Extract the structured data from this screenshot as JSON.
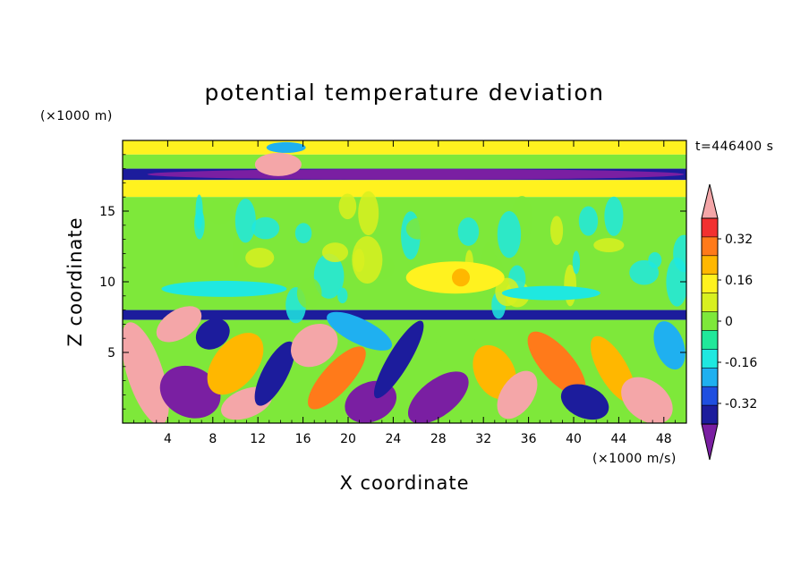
{
  "chart_data": {
    "type": "heatmap",
    "title": "potential temperature deviation",
    "xlabel": "X coordinate",
    "ylabel": "Z coordinate",
    "x_units": "(×1000 m/s)",
    "y_units": "(×1000 m)",
    "time_label": "t=446400 s",
    "xlim": [
      0,
      50
    ],
    "ylim": [
      0,
      20
    ],
    "x_ticks": [
      4,
      8,
      12,
      16,
      20,
      24,
      28,
      32,
      36,
      40,
      44,
      48
    ],
    "y_ticks": [
      5,
      10,
      15
    ],
    "colorbar": {
      "levels": [
        -0.4,
        -0.32,
        -0.24,
        -0.16,
        -0.08,
        0,
        0.08,
        0.16,
        0.24,
        0.32,
        0.4
      ],
      "labels": [
        "0.32",
        "0.16",
        "0",
        "-0.16",
        "-0.32"
      ],
      "label_values": [
        0.32,
        0.16,
        0,
        -0.16,
        -0.32
      ],
      "under_color": "#7a1fa2",
      "over_color": "#f4a6a8",
      "colors": [
        "#1c1c9c",
        "#1f4fe0",
        "#1fb0f0",
        "#1fe8e0",
        "#20e89a",
        "#7ee83a",
        "#d8f020",
        "#fff21f",
        "#ffb700",
        "#ff7a1a",
        "#f23030"
      ]
    },
    "bands": [
      {
        "z": [
          19.0,
          20.0
        ],
        "value": 0.18
      },
      {
        "z": [
          18.0,
          19.0
        ],
        "value": 0.05
      },
      {
        "z": [
          17.2,
          18.0
        ],
        "value": -0.36
      },
      {
        "z": [
          16.0,
          17.2
        ],
        "value": 0.18
      },
      {
        "z": [
          8.0,
          16.0
        ],
        "value": 0.06
      },
      {
        "z": [
          7.3,
          8.0
        ],
        "value": -0.38
      },
      {
        "z": [
          0,
          7.3
        ],
        "value": 0.0
      }
    ],
    "features": [
      {
        "x": 6.5,
        "z": 3.2,
        "value": -0.45
      },
      {
        "x": 5.5,
        "z": 7.0,
        "value": 0.45
      },
      {
        "x": 13.8,
        "z": 18.2,
        "value": 0.45
      },
      {
        "x": 17.5,
        "z": 4.0,
        "value": 0.45
      },
      {
        "x": 28.0,
        "z": 1.6,
        "value": -0.45
      },
      {
        "x": 34.5,
        "z": 2.2,
        "value": 0.45
      },
      {
        "x": 40.0,
        "z": 4.5,
        "value": 0.3
      },
      {
        "x": 46.5,
        "z": 1.5,
        "value": 0.45
      },
      {
        "x": 29.5,
        "z": 10.0,
        "value": 0.2
      }
    ]
  }
}
